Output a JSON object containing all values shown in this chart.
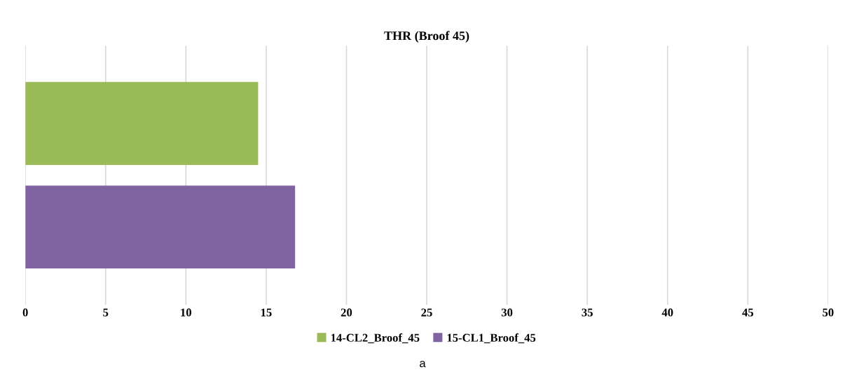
{
  "chart_data": {
    "type": "bar",
    "orientation": "horizontal",
    "title": "THR (Broof 45)",
    "categories": [
      null
    ],
    "series": [
      {
        "name": "14-CL2_Broof_45",
        "color": "#9bbb59",
        "values": [
          14.5
        ]
      },
      {
        "name": "15-CL1_Broof_45",
        "color": "#8064a2",
        "values": [
          16.8
        ]
      }
    ],
    "xlim": [
      0,
      50
    ],
    "xticks": [
      0,
      5,
      10,
      15,
      20,
      25,
      30,
      35,
      40,
      45,
      50
    ],
    "grid": "x",
    "legend": "bottom",
    "tick_labels": "x",
    "annotations": [
      "a"
    ]
  }
}
